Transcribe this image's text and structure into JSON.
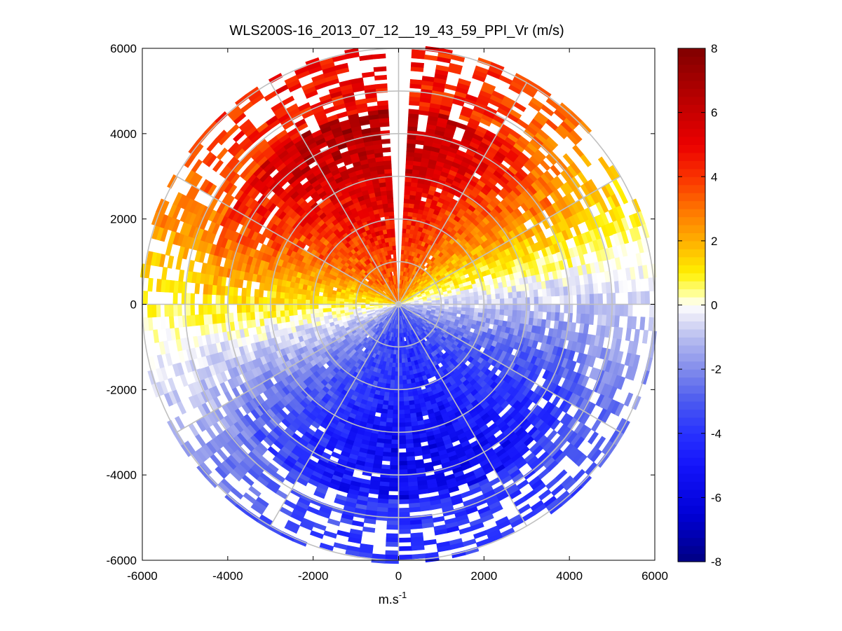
{
  "chart_data": {
    "type": "heatmap",
    "subtype": "polar-ppi-scan",
    "title": "WLS200S-16_2013_07_12__19_43_59_PPI_Vr (m/s)",
    "xlabel": "m.s",
    "xlabel_superscript": "-1",
    "ylabel": "",
    "xlim": [
      -6000,
      6000
    ],
    "ylim": [
      -6000,
      6000
    ],
    "xticks": [
      -6000,
      -4000,
      -2000,
      0,
      2000,
      4000,
      6000
    ],
    "yticks": [
      -6000,
      -4000,
      -2000,
      0,
      2000,
      4000,
      6000
    ],
    "xtick_labels": [
      "-6000",
      "-4000",
      "-2000",
      "0",
      "2000",
      "4000",
      "6000"
    ],
    "ytick_labels": [
      "-6000",
      "-4000",
      "-2000",
      "0",
      "2000",
      "4000",
      "6000"
    ],
    "range_max": 6000,
    "range_rings": [
      1000,
      2000,
      3000,
      4000,
      5000,
      6000
    ],
    "spokes_deg": [
      0,
      30,
      60,
      90,
      120,
      150,
      180,
      210,
      240,
      270,
      300,
      330
    ],
    "gap_bearing_deg": 0,
    "colorbar": {
      "min": -8,
      "max": 8,
      "ticks": [
        8,
        6,
        4,
        2,
        0,
        -2,
        -4,
        -6,
        -8
      ],
      "tick_labels": [
        "8",
        "6",
        "4",
        "2",
        "0",
        "-2",
        "-4",
        "-6",
        "-8"
      ],
      "colormap": "blue-white-red (Vr)"
    },
    "field_summary": {
      "north_sector_peak_vr": 6.5,
      "south_sector_peak_vr": -5.5,
      "zero_line_bearing_deg": 260
    }
  },
  "colors": {
    "background": "#ffffff",
    "grid": "#c0c0c0",
    "axis": "#000000"
  }
}
